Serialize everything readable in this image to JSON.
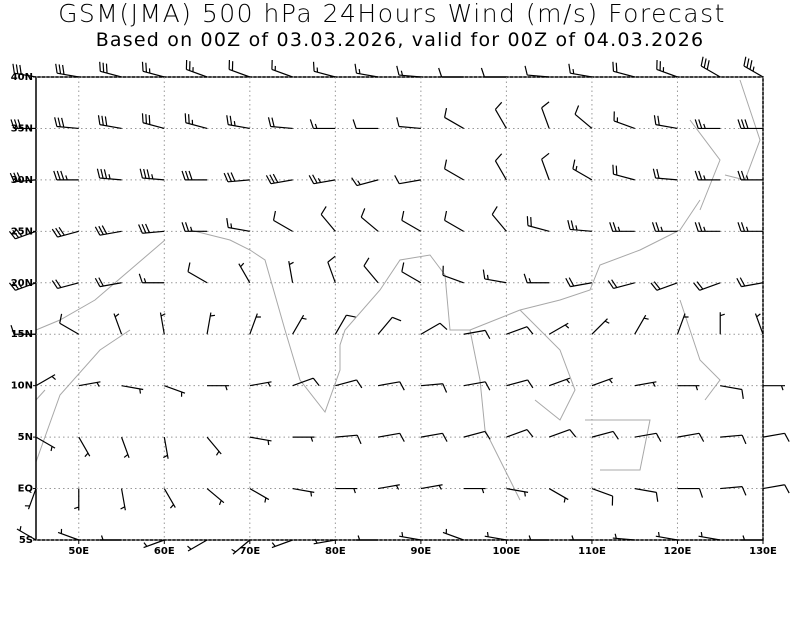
{
  "header": {
    "title": "GSM(JMA) 500 hPa 24Hours Wind (m/s) Forecast",
    "subtitle": "Based on 00Z of 03.03.2026, valid for 00Z of 04.03.2026"
  },
  "map": {
    "xlim": [
      45,
      130
    ],
    "ylim": [
      -5,
      40
    ],
    "xticks": [
      {
        "value": 50,
        "label": "50E"
      },
      {
        "value": 60,
        "label": "60E"
      },
      {
        "value": 70,
        "label": "70E"
      },
      {
        "value": 80,
        "label": "80E"
      },
      {
        "value": 90,
        "label": "90E"
      },
      {
        "value": 100,
        "label": "100E"
      },
      {
        "value": 110,
        "label": "110E"
      },
      {
        "value": 120,
        "label": "120E"
      },
      {
        "value": 130,
        "label": "130E"
      }
    ],
    "yticks": [
      {
        "value": 40,
        "label": "40N"
      },
      {
        "value": 35,
        "label": "35N"
      },
      {
        "value": 30,
        "label": "30N"
      },
      {
        "value": 25,
        "label": "25N"
      },
      {
        "value": 20,
        "label": "20N"
      },
      {
        "value": 15,
        "label": "15N"
      },
      {
        "value": 10,
        "label": "10N"
      },
      {
        "value": 5,
        "label": "5N"
      },
      {
        "value": 0,
        "label": "EQ"
      },
      {
        "value": -5,
        "label": "5S"
      }
    ],
    "grid": true,
    "wind": {
      "lons": [
        45,
        50,
        55,
        60,
        65,
        70,
        75,
        80,
        85,
        90,
        95,
        100,
        105,
        110,
        115,
        120,
        125,
        130
      ],
      "lats": [
        40,
        35,
        30,
        25,
        20,
        15,
        10,
        5,
        0,
        -5
      ],
      "direction": [
        [
          280,
          280,
          285,
          285,
          290,
          290,
          290,
          285,
          280,
          275,
          270,
          270,
          275,
          280,
          285,
          290,
          300,
          300
        ],
        [
          270,
          275,
          280,
          285,
          285,
          280,
          275,
          270,
          270,
          275,
          300,
          330,
          340,
          310,
          290,
          280,
          270,
          270
        ],
        [
          265,
          270,
          275,
          275,
          270,
          265,
          260,
          260,
          255,
          260,
          300,
          330,
          340,
          300,
          285,
          275,
          270,
          270
        ],
        [
          250,
          255,
          260,
          265,
          270,
          280,
          300,
          320,
          310,
          300,
          300,
          320,
          285,
          275,
          270,
          270,
          270,
          270
        ],
        [
          250,
          255,
          260,
          270,
          300,
          330,
          350,
          340,
          320,
          300,
          290,
          280,
          270,
          260,
          255,
          250,
          250,
          260
        ],
        [
          270,
          300,
          340,
          350,
          10,
          20,
          30,
          30,
          40,
          60,
          80,
          70,
          60,
          45,
          30,
          20,
          360,
          340
        ],
        [
          60,
          80,
          100,
          110,
          90,
          80,
          70,
          75,
          80,
          85,
          80,
          75,
          70,
          70,
          80,
          90,
          100,
          90
        ],
        [
          120,
          150,
          160,
          170,
          140,
          100,
          90,
          85,
          80,
          80,
          75,
          70,
          70,
          75,
          80,
          80,
          85,
          80
        ],
        [
          200,
          180,
          170,
          150,
          130,
          120,
          100,
          90,
          80,
          80,
          90,
          100,
          120,
          110,
          100,
          90,
          85,
          80
        ],
        [
          300,
          290,
          270,
          250,
          240,
          230,
          250,
          260,
          270,
          280,
          290,
          280,
          270,
          270,
          275,
          280,
          280,
          270
        ]
      ],
      "speed": [
        [
          30,
          30,
          30,
          25,
          25,
          20,
          15,
          15,
          15,
          15,
          10,
          10,
          10,
          15,
          20,
          25,
          30,
          35
        ],
        [
          30,
          30,
          30,
          30,
          25,
          25,
          20,
          15,
          10,
          10,
          10,
          10,
          10,
          10,
          15,
          20,
          25,
          30
        ],
        [
          30,
          35,
          35,
          35,
          30,
          30,
          30,
          25,
          15,
          10,
          10,
          10,
          10,
          15,
          20,
          20,
          25,
          25
        ],
        [
          30,
          30,
          30,
          30,
          25,
          15,
          10,
          10,
          10,
          10,
          10,
          10,
          20,
          25,
          25,
          25,
          25,
          25
        ],
        [
          25,
          20,
          20,
          15,
          10,
          5,
          5,
          10,
          10,
          10,
          10,
          15,
          15,
          20,
          20,
          20,
          20,
          20
        ],
        [
          10,
          10,
          5,
          5,
          5,
          5,
          5,
          10,
          10,
          10,
          10,
          10,
          5,
          5,
          5,
          5,
          5,
          5
        ],
        [
          5,
          5,
          5,
          5,
          5,
          5,
          10,
          10,
          10,
          10,
          10,
          10,
          5,
          5,
          5,
          5,
          10,
          5
        ],
        [
          5,
          5,
          5,
          5,
          5,
          5,
          5,
          10,
          10,
          10,
          10,
          10,
          10,
          10,
          10,
          10,
          10,
          10
        ],
        [
          5,
          5,
          5,
          5,
          5,
          5,
          5,
          5,
          5,
          5,
          5,
          5,
          5,
          10,
          10,
          10,
          10,
          10
        ],
        [
          5,
          5,
          5,
          5,
          5,
          5,
          5,
          5,
          5,
          5,
          5,
          5,
          5,
          5,
          5,
          5,
          5,
          5
        ]
      ],
      "color": "#000000"
    }
  }
}
